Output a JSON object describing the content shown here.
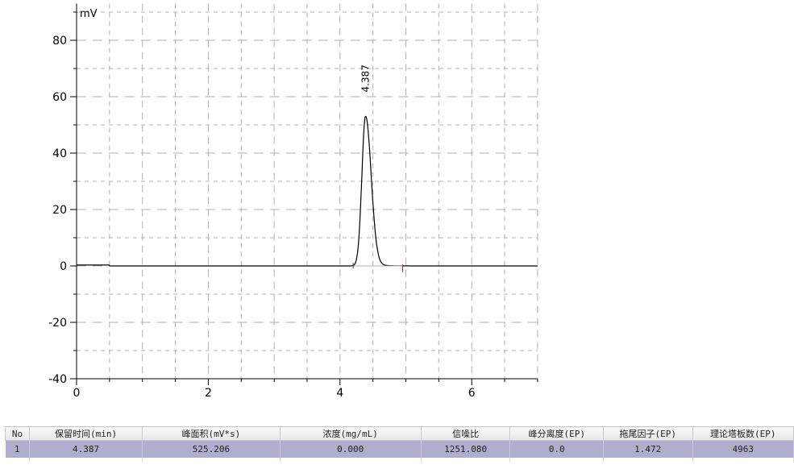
{
  "chart_data": {
    "type": "line",
    "ylabel": "mV",
    "xlim": [
      0,
      7
    ],
    "ylim": [
      -40,
      93
    ],
    "xticks": [
      0,
      2,
      4,
      6
    ],
    "yticks": [
      -40,
      -20,
      0,
      20,
      40,
      60,
      80
    ],
    "grid": true,
    "peaks": [
      {
        "label": "4.387",
        "x": 4.387,
        "y": 53,
        "start": 4.2,
        "end": 4.95
      }
    ],
    "baseline": 0,
    "colors": {
      "line": "#000000",
      "grid": "#b0b0b0",
      "start_marker": "#3030a0",
      "end_marker": "#c02040"
    }
  },
  "table": {
    "headers": [
      "No",
      "保留时间(min)",
      "峰面积(mV*s)",
      "浓度(mg/mL)",
      "信噪比",
      "峰分离度(EP)",
      "拖尾因子(EP)",
      "理论塔板数(EP)"
    ],
    "rows": [
      [
        "1",
        "4.387",
        "525.206",
        "0.000",
        "1251.080",
        "0.0",
        "1.472",
        "4963"
      ]
    ]
  }
}
